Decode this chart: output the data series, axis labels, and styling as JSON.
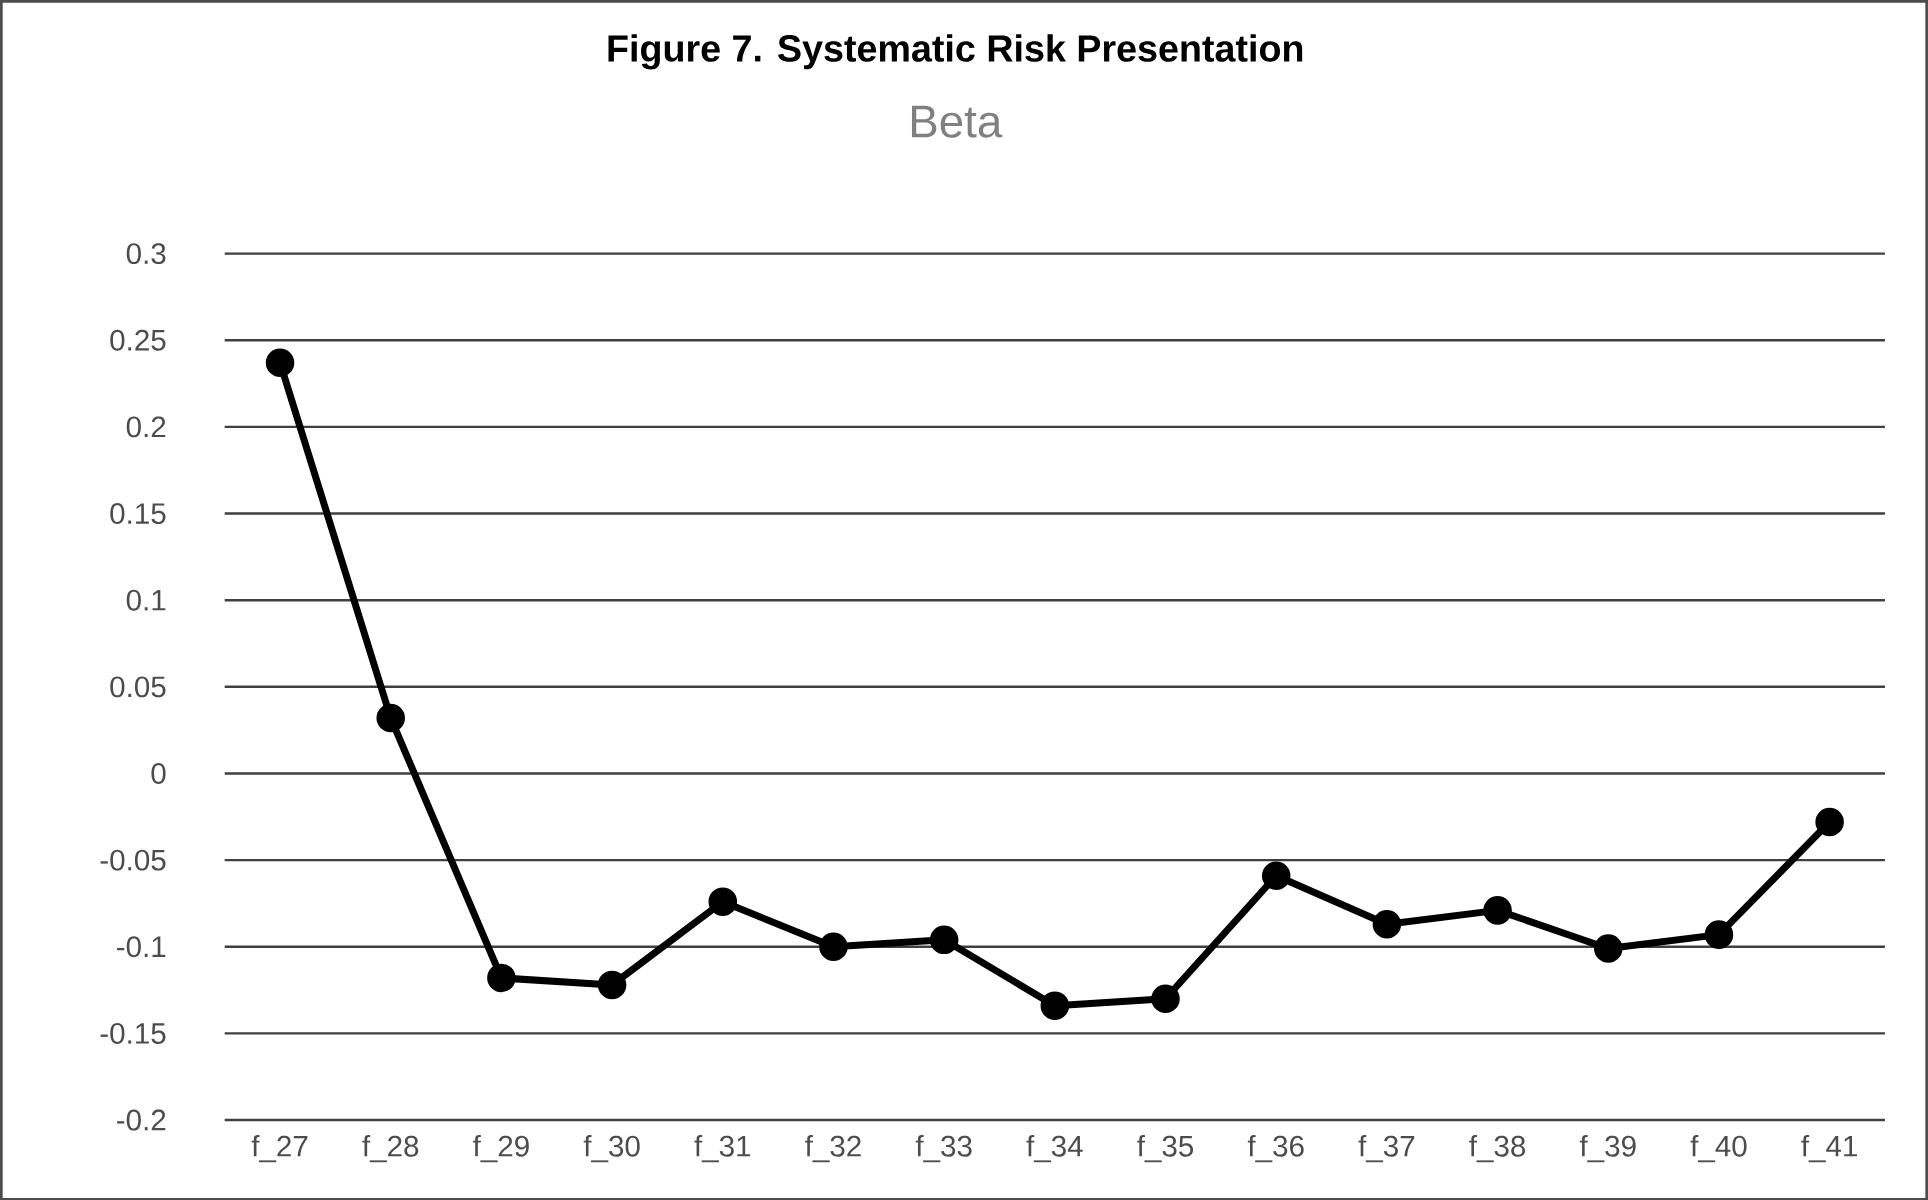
{
  "chart_data": {
    "type": "line",
    "title": "Figure 7. Systematic Risk Presentation",
    "subtitle": "Beta",
    "categories": [
      "f_27",
      "f_28",
      "f_29",
      "f_30",
      "f_31",
      "f_32",
      "f_33",
      "f_34",
      "f_35",
      "f_36",
      "f_37",
      "f_38",
      "f_39",
      "f_40",
      "f_41"
    ],
    "series": [
      {
        "color": "#000000",
        "values": [
          0.237,
          0.032,
          -0.118,
          -0.122,
          -0.074,
          -0.1,
          -0.096,
          -0.134,
          -0.13,
          -0.059,
          -0.087,
          -0.079,
          -0.101,
          -0.093,
          -0.028
        ]
      }
    ],
    "ylim": [
      -0.2,
      0.3
    ],
    "yticks": [
      -0.2,
      -0.15,
      -0.1,
      -0.05,
      0,
      0.05,
      0.1,
      0.15,
      0.2,
      0.25,
      0.3
    ],
    "grid": "y",
    "marker": "circle",
    "line_style": "solid"
  }
}
